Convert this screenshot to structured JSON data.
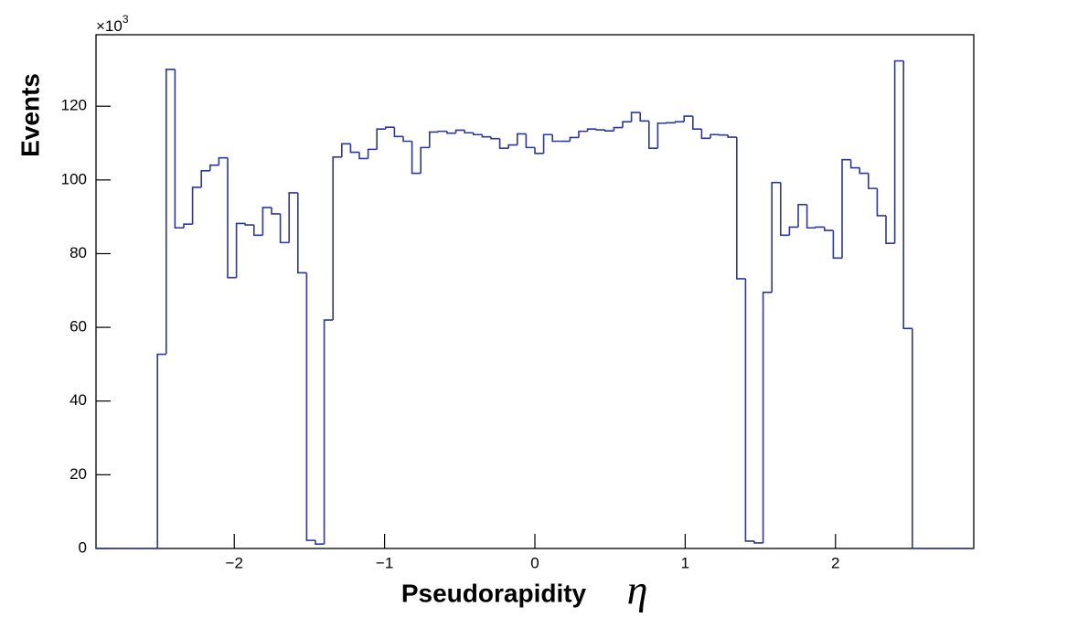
{
  "chart_data": {
    "type": "histogram",
    "x_label": "Pseudorapidity",
    "x_symbol": "η",
    "y_label": "Events",
    "y_scale_label": {
      "base": "×10",
      "exponent": "3"
    },
    "color": "#2b35a3",
    "xlim": [
      -2.92,
      2.92
    ],
    "ylim": [
      0,
      139.4
    ],
    "xticks": [
      {
        "value": -2,
        "label": "−2"
      },
      {
        "value": -1,
        "label": "−1"
      },
      0,
      1,
      2
    ],
    "yticks": [
      0,
      20,
      40,
      60,
      80,
      100,
      120
    ],
    "bins": [
      -2.92,
      -2.8616,
      -2.8032,
      -2.7448,
      -2.6864,
      -2.628,
      -2.5696,
      -2.5112,
      -2.4528,
      -2.3944,
      -2.336,
      -2.2776,
      -2.2192,
      -2.1608,
      -2.1024,
      -2.044,
      -1.9856,
      -1.9272,
      -1.8688,
      -1.8104,
      -1.752,
      -1.6936,
      -1.6352,
      -1.5768,
      -1.5184,
      -1.46,
      -1.4016,
      -1.3432,
      -1.2848,
      -1.2264,
      -1.168,
      -1.1096,
      -1.0512,
      -0.9928,
      -0.9344,
      -0.876,
      -0.8176,
      -0.7592,
      -0.7008,
      -0.6424,
      -0.584,
      -0.5256,
      -0.4672,
      -0.4088,
      -0.3504,
      -0.292,
      -0.2336,
      -0.1752,
      -0.1168,
      -0.0584,
      0,
      0.0584,
      0.1168,
      0.1752,
      0.2336,
      0.292,
      0.3504,
      0.4088,
      0.4672,
      0.5256,
      0.584,
      0.6424,
      0.7008,
      0.7592,
      0.8176,
      0.876,
      0.9344,
      0.9928,
      1.0512,
      1.1096,
      1.168,
      1.2264,
      1.2848,
      1.3432,
      1.4016,
      1.46,
      1.5184,
      1.5768,
      1.6352,
      1.6936,
      1.752,
      1.8104,
      1.8688,
      1.9272,
      1.9856,
      2.044,
      2.1024,
      2.1608,
      2.2192,
      2.2776,
      2.336,
      2.3944,
      2.4528,
      2.5112,
      2.5696,
      2.628,
      2.6864,
      2.7448,
      2.8032,
      2.8616,
      2.92
    ],
    "values": [
      0,
      0,
      0,
      0,
      0,
      0,
      0,
      52.7,
      130,
      87,
      88,
      98,
      102.5,
      104,
      106,
      73.5,
      88.2,
      87.8,
      85,
      92.5,
      90.8,
      83,
      96.5,
      74.8,
      2.2,
      1.2,
      62,
      106.2,
      109.8,
      107.5,
      105.8,
      108.3,
      113.8,
      114.3,
      111.8,
      110.5,
      101.8,
      108.8,
      113,
      113.2,
      112.7,
      113.5,
      112.8,
      112.3,
      111.7,
      111.2,
      108.6,
      109.5,
      112.5,
      108.8,
      107.2,
      112.3,
      110.5,
      110.5,
      111.5,
      113.2,
      113.8,
      113.6,
      113.3,
      114.2,
      115.8,
      118.3,
      116,
      108.6,
      115.4,
      115.5,
      115.8,
      117.3,
      113.8,
      111.3,
      112.3,
      112.2,
      111.6,
      73.2,
      2,
      1.5,
      69.5,
      99.3,
      85,
      87.2,
      93.3,
      87,
      87.2,
      86.3,
      78.8,
      105.5,
      103.3,
      101.8,
      97.7,
      90.3,
      82.8,
      132.3,
      59.7,
      0,
      0,
      0,
      0,
      0,
      0,
      0
    ]
  }
}
